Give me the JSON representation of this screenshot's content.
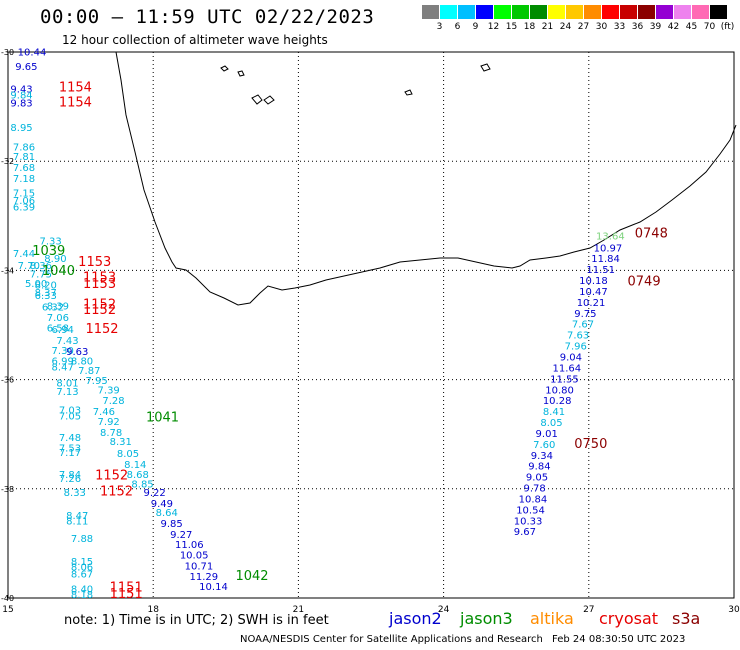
{
  "title": "00:00 – 11:59 UTC 02/22/2023",
  "subtitle": "12 hour collection of altimeter wave heights",
  "scale": {
    "colors": [
      "#7f7f7f",
      "#00ffff",
      "#00bfff",
      "#0000ff",
      "#00ff00",
      "#00c800",
      "#008c00",
      "#ffff00",
      "#ffc800",
      "#ff8c00",
      "#ff0000",
      "#c80000",
      "#8b0000",
      "#9400d3",
      "#ee82ee",
      "#ff69b4",
      "#000000"
    ],
    "labels": [
      "3",
      "6",
      "9",
      "12",
      "15",
      "18",
      "21",
      "24",
      "27",
      "30",
      "33",
      "36",
      "39",
      "42",
      "45",
      "70",
      "(ft)"
    ]
  },
  "axes": {
    "lon_labels": [
      "15",
      "18",
      "21",
      "24",
      "27",
      "30"
    ],
    "lat_labels": [
      "-30",
      "-32",
      "-34",
      "-36",
      "-38",
      "-40"
    ],
    "lon_range": [
      15,
      30
    ],
    "lat_range": [
      -40,
      -30
    ]
  },
  "colors": {
    "cyan": "#00b4dc",
    "blue": "#0000cd",
    "green": "#008c00",
    "red": "#e60000",
    "darkred": "#8b0000",
    "lightgreen": "#7bd17b",
    "orange": "#ff8c00"
  },
  "observations": [
    {
      "lon": 15.2,
      "lat": -30.06,
      "t": "10.44",
      "c": "blue"
    },
    {
      "lon": 15.15,
      "lat": -30.33,
      "t": "9.65",
      "c": "blue"
    },
    {
      "lon": 15.05,
      "lat": -30.74,
      "t": "9.43",
      "c": "blue"
    },
    {
      "lon": 15.05,
      "lat": -30.85,
      "t": "9.84",
      "c": "cyan"
    },
    {
      "lon": 15.05,
      "lat": -31.0,
      "t": "9.83",
      "c": "blue"
    },
    {
      "lon": 15.05,
      "lat": -31.45,
      "t": "8.95",
      "c": "cyan"
    },
    {
      "lon": 15.1,
      "lat": -31.8,
      "t": "7.86",
      "c": "cyan"
    },
    {
      "lon": 15.1,
      "lat": -31.98,
      "t": "7.81",
      "c": "cyan"
    },
    {
      "lon": 15.1,
      "lat": -32.18,
      "t": "7.68",
      "c": "cyan"
    },
    {
      "lon": 15.1,
      "lat": -32.38,
      "t": "7.18",
      "c": "cyan"
    },
    {
      "lon": 15.1,
      "lat": -32.65,
      "t": "7.15",
      "c": "cyan"
    },
    {
      "lon": 15.1,
      "lat": -32.78,
      "t": "7.06",
      "c": "cyan"
    },
    {
      "lon": 15.1,
      "lat": -32.9,
      "t": "6.39",
      "c": "cyan"
    },
    {
      "lon": 15.65,
      "lat": -33.53,
      "t": "7.33",
      "c": "cyan"
    },
    {
      "lon": 15.1,
      "lat": -33.75,
      "t": "7.44",
      "c": "cyan"
    },
    {
      "lon": 15.75,
      "lat": -33.85,
      "t": "8.90",
      "c": "cyan"
    },
    {
      "lon": 15.2,
      "lat": -33.97,
      "t": "7.70",
      "c": "cyan"
    },
    {
      "lon": 15.45,
      "lat": -33.97,
      "t": "8.36",
      "c": "cyan"
    },
    {
      "lon": 15.45,
      "lat": -34.13,
      "t": "7.75",
      "c": "cyan"
    },
    {
      "lon": 15.35,
      "lat": -34.3,
      "t": "5.00",
      "c": "cyan"
    },
    {
      "lon": 15.55,
      "lat": -34.33,
      "t": "8.20",
      "c": "cyan"
    },
    {
      "lon": 15.55,
      "lat": -34.47,
      "t": "8.37",
      "c": "cyan"
    },
    {
      "lon": 15.55,
      "lat": -34.52,
      "t": "6.33",
      "c": "cyan"
    },
    {
      "lon": 15.7,
      "lat": -34.73,
      "t": "6.32",
      "c": "cyan"
    },
    {
      "lon": 15.8,
      "lat": -34.72,
      "t": "8.39",
      "c": "cyan"
    },
    {
      "lon": 15.8,
      "lat": -34.93,
      "t": "7.06",
      "c": "cyan"
    },
    {
      "lon": 15.8,
      "lat": -35.12,
      "t": "6.58",
      "c": "cyan"
    },
    {
      "lon": 15.9,
      "lat": -35.15,
      "t": "6.94",
      "c": "cyan"
    },
    {
      "lon": 16.0,
      "lat": -35.35,
      "t": "7.43",
      "c": "cyan"
    },
    {
      "lon": 15.9,
      "lat": -35.53,
      "t": "7.30",
      "c": "cyan"
    },
    {
      "lon": 16.2,
      "lat": -35.55,
      "t": "9.63",
      "c": "blue"
    },
    {
      "lon": 15.9,
      "lat": -35.72,
      "t": "6.99",
      "c": "cyan"
    },
    {
      "lon": 16.3,
      "lat": -35.72,
      "t": "8.80",
      "c": "cyan"
    },
    {
      "lon": 15.9,
      "lat": -35.83,
      "t": "8.47",
      "c": "cyan"
    },
    {
      "lon": 16.45,
      "lat": -35.9,
      "t": "7.87",
      "c": "cyan"
    },
    {
      "lon": 16.6,
      "lat": -36.08,
      "t": "7.95",
      "c": "cyan"
    },
    {
      "lon": 16.0,
      "lat": -36.13,
      "t": "8.01",
      "c": "cyan"
    },
    {
      "lon": 16.85,
      "lat": -36.25,
      "t": "7.39",
      "c": "cyan"
    },
    {
      "lon": 16.0,
      "lat": -36.28,
      "t": "7.13",
      "c": "cyan"
    },
    {
      "lon": 16.95,
      "lat": -36.45,
      "t": "7.28",
      "c": "cyan"
    },
    {
      "lon": 16.05,
      "lat": -36.62,
      "t": "7.03",
      "c": "cyan"
    },
    {
      "lon": 16.75,
      "lat": -36.65,
      "t": "7.46",
      "c": "cyan"
    },
    {
      "lon": 16.05,
      "lat": -36.73,
      "t": "7.05",
      "c": "cyan"
    },
    {
      "lon": 16.85,
      "lat": -36.83,
      "t": "7.92",
      "c": "cyan"
    },
    {
      "lon": 16.9,
      "lat": -37.03,
      "t": "8.78",
      "c": "cyan"
    },
    {
      "lon": 16.05,
      "lat": -37.12,
      "t": "7.48",
      "c": "cyan"
    },
    {
      "lon": 17.1,
      "lat": -37.2,
      "t": "8.31",
      "c": "cyan"
    },
    {
      "lon": 16.05,
      "lat": -37.32,
      "t": "7.53",
      "c": "cyan"
    },
    {
      "lon": 16.05,
      "lat": -37.4,
      "t": "7.17",
      "c": "cyan"
    },
    {
      "lon": 17.25,
      "lat": -37.42,
      "t": "8.05",
      "c": "cyan"
    },
    {
      "lon": 17.4,
      "lat": -37.62,
      "t": "8.14",
      "c": "cyan"
    },
    {
      "lon": 16.05,
      "lat": -37.8,
      "t": "7.84",
      "c": "cyan"
    },
    {
      "lon": 16.05,
      "lat": -37.88,
      "t": "7.26",
      "c": "cyan"
    },
    {
      "lon": 17.45,
      "lat": -37.8,
      "t": "8.68",
      "c": "cyan"
    },
    {
      "lon": 17.55,
      "lat": -37.98,
      "t": "8.85",
      "c": "cyan"
    },
    {
      "lon": 16.15,
      "lat": -38.13,
      "t": "8.33",
      "c": "cyan"
    },
    {
      "lon": 17.8,
      "lat": -38.13,
      "t": "9.22",
      "c": "blue"
    },
    {
      "lon": 17.95,
      "lat": -38.33,
      "t": "9.49",
      "c": "blue"
    },
    {
      "lon": 18.05,
      "lat": -38.5,
      "t": "8.64",
      "c": "cyan"
    },
    {
      "lon": 16.2,
      "lat": -38.55,
      "t": "8.47",
      "c": "cyan"
    },
    {
      "lon": 16.2,
      "lat": -38.65,
      "t": "8.11",
      "c": "cyan"
    },
    {
      "lon": 18.15,
      "lat": -38.7,
      "t": "9.85",
      "c": "blue"
    },
    {
      "lon": 18.35,
      "lat": -38.9,
      "t": "9.27",
      "c": "blue"
    },
    {
      "lon": 16.3,
      "lat": -38.97,
      "t": "7.88",
      "c": "cyan"
    },
    {
      "lon": 18.45,
      "lat": -39.08,
      "t": "11.06",
      "c": "blue"
    },
    {
      "lon": 18.55,
      "lat": -39.28,
      "t": "10.05",
      "c": "blue"
    },
    {
      "lon": 16.3,
      "lat": -39.4,
      "t": "8.15",
      "c": "cyan"
    },
    {
      "lon": 16.3,
      "lat": -39.5,
      "t": "8.06",
      "c": "cyan"
    },
    {
      "lon": 16.3,
      "lat": -39.62,
      "t": "8.67",
      "c": "cyan"
    },
    {
      "lon": 18.65,
      "lat": -39.48,
      "t": "10.71",
      "c": "blue"
    },
    {
      "lon": 18.75,
      "lat": -39.67,
      "t": "11.29",
      "c": "blue"
    },
    {
      "lon": 18.95,
      "lat": -39.85,
      "t": "10.14",
      "c": "blue"
    },
    {
      "lon": 16.3,
      "lat": -39.9,
      "t": "8.40",
      "c": "cyan"
    },
    {
      "lon": 16.3,
      "lat": -40.0,
      "t": "8.18",
      "c": "cyan"
    },
    {
      "lon": 27.15,
      "lat": -33.43,
      "t": "13.64",
      "c": "lightgreen"
    },
    {
      "lon": 27.1,
      "lat": -33.65,
      "t": "10.97",
      "c": "blue"
    },
    {
      "lon": 27.05,
      "lat": -33.85,
      "t": "11.84",
      "c": "blue"
    },
    {
      "lon": 26.95,
      "lat": -34.05,
      "t": "11.51",
      "c": "blue"
    },
    {
      "lon": 26.8,
      "lat": -34.25,
      "t": "10.18",
      "c": "blue"
    },
    {
      "lon": 26.8,
      "lat": -34.45,
      "t": "10.47",
      "c": "blue"
    },
    {
      "lon": 26.75,
      "lat": -34.65,
      "t": "10.21",
      "c": "blue"
    },
    {
      "lon": 26.7,
      "lat": -34.85,
      "t": "9.75",
      "c": "blue"
    },
    {
      "lon": 26.65,
      "lat": -35.05,
      "t": "7.67",
      "c": "cyan"
    },
    {
      "lon": 26.55,
      "lat": -35.25,
      "t": "7.63",
      "c": "cyan"
    },
    {
      "lon": 26.5,
      "lat": -35.45,
      "t": "7.96",
      "c": "cyan"
    },
    {
      "lon": 26.4,
      "lat": -35.65,
      "t": "9.04",
      "c": "blue"
    },
    {
      "lon": 26.25,
      "lat": -35.85,
      "t": "11.64",
      "c": "blue"
    },
    {
      "lon": 26.2,
      "lat": -36.05,
      "t": "11.55",
      "c": "blue"
    },
    {
      "lon": 26.1,
      "lat": -36.25,
      "t": "10.80",
      "c": "blue"
    },
    {
      "lon": 26.05,
      "lat": -36.45,
      "t": "10.28",
      "c": "blue"
    },
    {
      "lon": 26.05,
      "lat": -36.65,
      "t": "8.41",
      "c": "cyan"
    },
    {
      "lon": 26.0,
      "lat": -36.85,
      "t": "8.05",
      "c": "cyan"
    },
    {
      "lon": 25.9,
      "lat": -37.05,
      "t": "9.01",
      "c": "blue"
    },
    {
      "lon": 25.85,
      "lat": -37.25,
      "t": "7.60",
      "c": "cyan"
    },
    {
      "lon": 25.8,
      "lat": -37.45,
      "t": "9.34",
      "c": "blue"
    },
    {
      "lon": 25.75,
      "lat": -37.65,
      "t": "9.84",
      "c": "blue"
    },
    {
      "lon": 25.7,
      "lat": -37.85,
      "t": "9.05",
      "c": "blue"
    },
    {
      "lon": 25.65,
      "lat": -38.05,
      "t": "9.78",
      "c": "blue"
    },
    {
      "lon": 25.55,
      "lat": -38.25,
      "t": "10.84",
      "c": "blue"
    },
    {
      "lon": 25.5,
      "lat": -38.45,
      "t": "10.54",
      "c": "blue"
    },
    {
      "lon": 25.45,
      "lat": -38.65,
      "t": "10.33",
      "c": "blue"
    },
    {
      "lon": 25.45,
      "lat": -38.85,
      "t": "9.67",
      "c": "blue"
    }
  ],
  "times": [
    {
      "lon": 16.05,
      "lat": -30.72,
      "t": "1154",
      "c": "red"
    },
    {
      "lon": 16.05,
      "lat": -31.0,
      "t": "1154",
      "c": "red"
    },
    {
      "lon": 15.5,
      "lat": -33.72,
      "t": "1039",
      "c": "green"
    },
    {
      "lon": 16.45,
      "lat": -33.92,
      "t": "1153",
      "c": "red"
    },
    {
      "lon": 15.7,
      "lat": -34.08,
      "t": "1040",
      "c": "green"
    },
    {
      "lon": 16.55,
      "lat": -34.2,
      "t": "1153",
      "c": "red"
    },
    {
      "lon": 16.55,
      "lat": -34.32,
      "t": "1153",
      "c": "red"
    },
    {
      "lon": 16.55,
      "lat": -34.7,
      "t": "1152",
      "c": "red"
    },
    {
      "lon": 16.55,
      "lat": -34.8,
      "t": "1152",
      "c": "red"
    },
    {
      "lon": 16.6,
      "lat": -35.15,
      "t": "1152",
      "c": "red"
    },
    {
      "lon": 17.85,
      "lat": -36.77,
      "t": "1041",
      "c": "green"
    },
    {
      "lon": 16.8,
      "lat": -37.83,
      "t": "1152",
      "c": "red"
    },
    {
      "lon": 16.9,
      "lat": -38.12,
      "t": "1152",
      "c": "red"
    },
    {
      "lon": 19.7,
      "lat": -39.67,
      "t": "1042",
      "c": "green"
    },
    {
      "lon": 17.1,
      "lat": -39.88,
      "t": "1151",
      "c": "red"
    },
    {
      "lon": 17.1,
      "lat": -40.0,
      "t": "1151",
      "c": "red"
    },
    {
      "lon": 27.95,
      "lat": -33.4,
      "t": "0748",
      "c": "darkred"
    },
    {
      "lon": 27.8,
      "lat": -34.28,
      "t": "0749",
      "c": "darkred"
    },
    {
      "lon": 26.7,
      "lat": -37.25,
      "t": "0750",
      "c": "darkred"
    }
  ],
  "footer": {
    "note": "note:  1) Time is in UTC;  2) SWH is in feet",
    "satellites": [
      {
        "name": "jason2",
        "color": "#0000cd"
      },
      {
        "name": "jason3",
        "color": "#008c00"
      },
      {
        "name": "altika",
        "color": "#ff8c00"
      },
      {
        "name": "cryosat",
        "color": "#e60000"
      },
      {
        "name": "s3a",
        "color": "#8b0000"
      }
    ],
    "credit": "NOAA/NESDIS Center for Satellite Applications and Research",
    "timestamp": "Feb 24 08:30:50 UTC 2023"
  }
}
